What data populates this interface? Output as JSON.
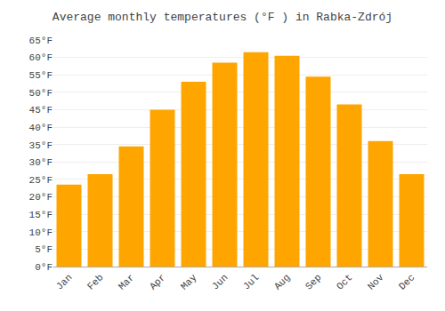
{
  "chart_data": {
    "type": "bar",
    "title": "Average monthly temperatures (°F ) in Rabka-Zdrój",
    "categories": [
      "Jan",
      "Feb",
      "Mar",
      "Apr",
      "May",
      "Jun",
      "Jul",
      "Aug",
      "Sep",
      "Oct",
      "Nov",
      "Dec"
    ],
    "values": [
      23.5,
      26.5,
      34.5,
      45.0,
      53.0,
      58.5,
      61.5,
      60.5,
      54.5,
      46.5,
      36.0,
      26.5
    ],
    "color": "#FFA500",
    "ylim": [
      0,
      65
    ],
    "yticks": [
      {
        "value": 0,
        "label": "0°F"
      },
      {
        "value": 5,
        "label": "5°F"
      },
      {
        "value": 10,
        "label": "10°F"
      },
      {
        "value": 15,
        "label": "15°F"
      },
      {
        "value": 20,
        "label": "20°F"
      },
      {
        "value": 25,
        "label": "25°F"
      },
      {
        "value": 30,
        "label": "30°F"
      },
      {
        "value": 35,
        "label": "35°F"
      },
      {
        "value": 40,
        "label": "40°F"
      },
      {
        "value": 45,
        "label": "45°F"
      },
      {
        "value": 50,
        "label": "50°F"
      },
      {
        "value": 55,
        "label": "55°F"
      },
      {
        "value": 60,
        "label": "60°F"
      },
      {
        "value": 65,
        "label": "65°F"
      }
    ],
    "grid": true
  }
}
